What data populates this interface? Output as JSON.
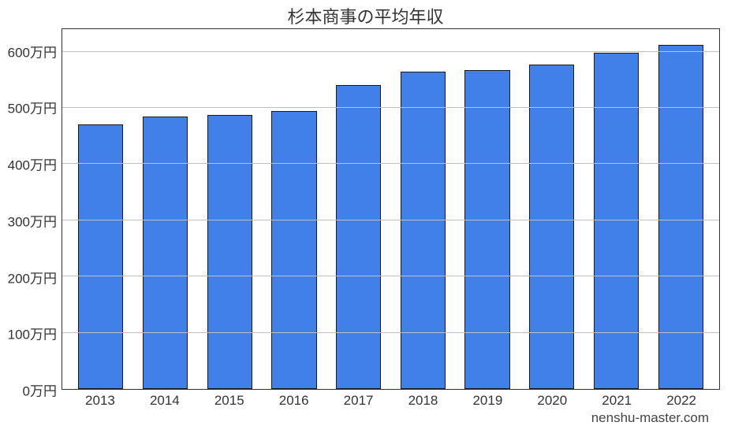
{
  "chart": {
    "type": "bar",
    "title": "杉本商事の平均年収",
    "title_fontsize": 22,
    "categories": [
      "2013",
      "2014",
      "2015",
      "2016",
      "2017",
      "2018",
      "2019",
      "2020",
      "2021",
      "2022"
    ],
    "values": [
      470,
      485,
      487,
      495,
      540,
      565,
      567,
      577,
      598,
      612
    ],
    "y_ticks": [
      0,
      100,
      200,
      300,
      400,
      500,
      600
    ],
    "y_tick_labels": [
      "0万円",
      "100万円",
      "200万円",
      "300万円",
      "400万円",
      "500万円",
      "600万円"
    ],
    "y_max_display": 640,
    "y_unit_suffix": "万円",
    "bar_color": "#4080e8",
    "bar_border_color": "#1a1a1a",
    "grid_color": "#bfbfbf",
    "axis_color": "#333333",
    "background_color": "#ffffff",
    "label_fontsize": 17,
    "bar_width_ratio": 0.7,
    "watermark": "nenshu-master.com"
  }
}
